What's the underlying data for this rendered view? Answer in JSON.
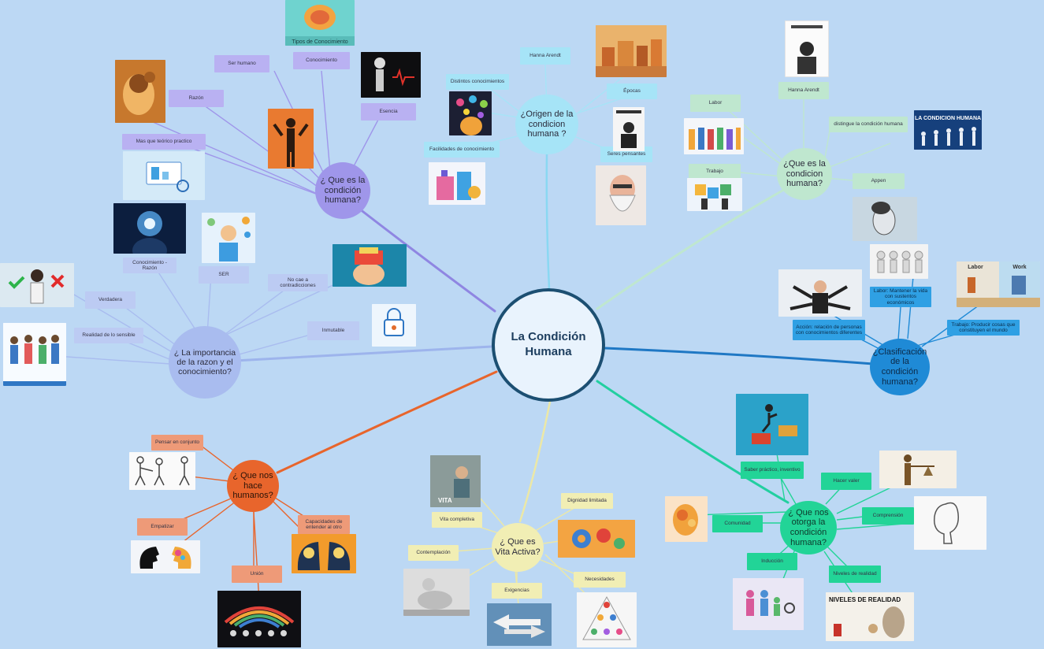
{
  "center": {
    "title": "La Condición Humana"
  },
  "colors": {
    "background": "#bcd8f4",
    "purple": "#9f96ea",
    "lavender": "#a9bcef",
    "skyblue": "#a6e4f7",
    "mint": "#bfe7cf",
    "blue": "#1f8ad6",
    "green": "#22d497",
    "yellow": "#f1eeb4",
    "orange": "#e8652c"
  },
  "branches": {
    "que_es_condicion": {
      "hub": "¿ Que es la condición humana?",
      "nodes": [
        "Ser humano",
        "Conocimiento",
        "Razón",
        "Esencia",
        "Mas que teórico practico"
      ]
    },
    "importancia_razon": {
      "hub": "¿ La importancia de la razon y el conocimiento?",
      "nodes": [
        "Conocimiento - Razón",
        "SER",
        "No cae a contradicciones",
        "Verdadera",
        "Realidad de lo sensible",
        "Inmutable"
      ]
    },
    "origen_condicion": {
      "hub": "¿Origen de la condicion humana ?",
      "nodes": [
        "Hanna Arendt",
        "Distintos conocimientos",
        "Épocas",
        "Facilidades de conocimiento",
        "Seres pensantes"
      ]
    },
    "que_es_condicion_2": {
      "hub": "¿Que es la condicion humana?",
      "nodes": [
        "Hanna Arendt",
        "Labor",
        "distingue la condición humana",
        "Trabajo",
        "Appen"
      ]
    },
    "clasificacion": {
      "hub": "¿Clasificación de la condición humana?",
      "nodes": [
        "Labor: Mantener la vida con sustentos económicos",
        "Acción: relación de personas con conocimientos diferentes",
        "Trabajo: Producir cosas que constituyen el mundo"
      ]
    },
    "que_nos_otorga": {
      "hub": "¿ Que nos otorga la condición humana?",
      "nodes": [
        "Saber práctico, inventivo",
        "Hacer valer",
        "Comprensión",
        "Comunidad",
        "Inducción",
        "Niveles de realidad"
      ]
    },
    "vita_activa": {
      "hub": "¿ Que es Vita Activa?",
      "nodes": [
        "Dignidad limitada",
        "Vita completiva",
        "Contemplación",
        "Exigencias",
        "Necesidades"
      ]
    },
    "que_nos_hace": {
      "hub": "¿ Que nos hace humanos?",
      "nodes": [
        "Pensar en conjunto",
        "Empatizar",
        "Capacidades de entender al otro",
        "Unión"
      ]
    }
  },
  "images": {
    "cabeza_engranajes": {
      "icon": "gear-head-icon"
    },
    "cerebro": {
      "icon": "brain-icon",
      "caption": "Tipos de Conocimiento"
    },
    "robot_humano": {
      "icon": "humanoid-robot-icon"
    },
    "siluetas": {
      "icon": "human-silhouettes-icon"
    },
    "computadora": {
      "icon": "computer-screen-icon"
    },
    "mente_luz": {
      "icon": "glowing-mind-icon"
    },
    "nino_pensando": {
      "icon": "thinking-child-icon"
    },
    "cabeza_abierta": {
      "icon": "open-head-icon"
    },
    "candado_cerebro": {
      "icon": "brain-lock-icon"
    },
    "mujer_decision": {
      "icon": "decision-woman-icon"
    },
    "grupo_personas": {
      "icon": "people-group-icon"
    },
    "ciudad_antigua": {
      "icon": "ancient-city-icon"
    },
    "cabeza_ideas": {
      "icon": "ideas-head-icon"
    },
    "conocimiento_edificio": {
      "icon": "knowledge-building-icon"
    },
    "hombre_leyendo": {
      "icon": "reading-man-icon"
    },
    "anciano_barba": {
      "icon": "bearded-elder-icon"
    },
    "retrato_libro": {
      "icon": "book-portrait-icon"
    },
    "evolucion": {
      "icon": "evolution-icon",
      "caption": "LA CONDICION HUMANA"
    },
    "trabajadores": {
      "icon": "workers-icon"
    },
    "puzzle": {
      "icon": "puzzle-team-icon"
    },
    "perfil_mujer": {
      "icon": "woman-profile-icon"
    },
    "figuras_3d": {
      "icon": "3d-figures-icon"
    },
    "empresario": {
      "icon": "businessman-icon"
    },
    "labor_work": {
      "icon": "labor-work-icon",
      "caption_a": "Labor",
      "caption_b": "Work"
    },
    "salto_libros": {
      "icon": "jump-books-icon"
    },
    "justicia": {
      "icon": "justice-statue-icon"
    },
    "cabeza_dibujo": {
      "icon": "sketch-head-icon"
    },
    "cabeza_naranja": {
      "icon": "orange-head-icon"
    },
    "familia": {
      "icon": "family-icon"
    },
    "niveles_realidad": {
      "icon": "reality-levels-icon",
      "caption": "NIVELES DE REALIDAD"
    },
    "vita_persona": {
      "icon": "vita-person-icon",
      "caption": "VITA"
    },
    "engranajes": {
      "icon": "gears-team-icon"
    },
    "escultura": {
      "icon": "sculpture-icon"
    },
    "flechas": {
      "icon": "arrows-sign-icon"
    },
    "piramide": {
      "icon": "needs-pyramid-icon"
    },
    "bocetos": {
      "icon": "sketch-figures-icon"
    },
    "cabezas_perfil": {
      "icon": "profile-heads-icon"
    },
    "cabezas_cerebro": {
      "icon": "brain-heads-icon"
    },
    "union_arco": {
      "icon": "union-rainbow-icon"
    }
  }
}
